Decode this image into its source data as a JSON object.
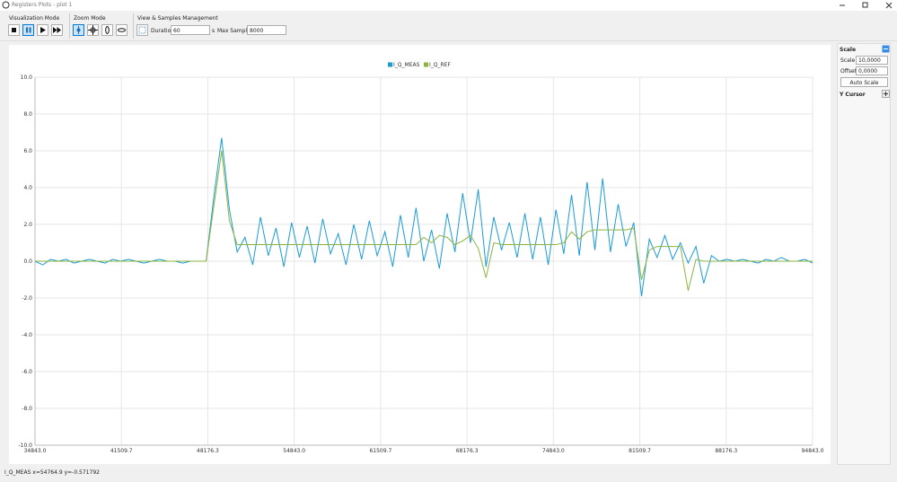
{
  "window": {
    "title": "Registers Plots - plot 1"
  },
  "toolbar": {
    "visualization_mode": "Visualization Mode",
    "zoom_mode": "Zoom Mode",
    "view_samples": "View & Samples Management",
    "duration_label": "Duration",
    "duration_value": "60",
    "duration_unit": "s",
    "max_samples_label": "Max Samples",
    "max_samples_value": "8000"
  },
  "side_panel": {
    "scale_header": "Scale",
    "scale_label": "Scale",
    "scale_value": "10,0000",
    "offset_label": "Offset",
    "offset_value": "0,0000",
    "auto_scale": "Auto Scale",
    "y_cursor": "Y Cursor"
  },
  "status_bar": {
    "text": "I_Q_MEAS x=54764.9 y=-0.571792"
  },
  "chart_data": {
    "type": "line",
    "legend": "top",
    "grid": true,
    "xlim": [
      34843,
      94843
    ],
    "ylim": [
      -10,
      10
    ],
    "xticks": [
      {
        "value": 34843,
        "label": "34843.0"
      },
      41509.7,
      48176.3,
      {
        "value": 54843,
        "label": "54843.0"
      },
      61509.7,
      68176.3,
      {
        "value": 74843,
        "label": "74843.0"
      },
      81509.7,
      88176.3,
      {
        "value": 94843,
        "label": "94843.0"
      }
    ],
    "yticks": [
      {
        "value": -10,
        "label": "-10.0"
      },
      {
        "value": -8,
        "label": "-8.0"
      },
      {
        "value": -6,
        "label": "-6.0"
      },
      {
        "value": -4,
        "label": "-4.0"
      },
      {
        "value": -2,
        "label": "-2.0"
      },
      {
        "value": 0,
        "label": "0.0"
      },
      {
        "value": 2,
        "label": "2.0"
      },
      {
        "value": 4,
        "label": "4.0"
      },
      {
        "value": 6,
        "label": "6.0"
      },
      {
        "value": 8,
        "label": "8.0"
      },
      {
        "value": 10,
        "label": "10.0"
      }
    ],
    "x": [
      34843,
      35443,
      36043,
      36643,
      37243,
      37843,
      38443,
      39043,
      39643,
      40243,
      40843,
      41443,
      42043,
      42643,
      43243,
      43843,
      44443,
      45043,
      45643,
      46243,
      46843,
      47443,
      48043,
      48643,
      49243,
      49843,
      50443,
      51043,
      51643,
      52243,
      52843,
      53443,
      54043,
      54643,
      55243,
      55843,
      56443,
      57043,
      57643,
      58243,
      58843,
      59443,
      60043,
      60643,
      61243,
      61843,
      62443,
      63043,
      63643,
      64243,
      64843,
      65443,
      66043,
      66643,
      67243,
      67843,
      68443,
      69043,
      69643,
      70243,
      70843,
      71443,
      72043,
      72643,
      73243,
      73843,
      74443,
      75043,
      75643,
      76243,
      76843,
      77443,
      78043,
      78643,
      79243,
      79843,
      80443,
      81043,
      81643,
      82243,
      82843,
      83443,
      84043,
      84643,
      85243,
      85843,
      86443,
      87043,
      87643,
      88243,
      88843,
      89443,
      90043,
      90643,
      91243,
      91843,
      92443,
      93043,
      93643,
      94243,
      94843
    ],
    "series": [
      {
        "name": "I_Q_MEAS",
        "color": "#1a9bd7",
        "values": [
          0,
          -0.2,
          0.1,
          0,
          0.1,
          -0.1,
          0,
          0.1,
          0,
          -0.1,
          0.1,
          0,
          0.1,
          0,
          -0.1,
          0,
          0.1,
          0,
          0,
          -0.1,
          0,
          0,
          0,
          3.5,
          6.7,
          2.8,
          0.5,
          1.3,
          -0.2,
          2.4,
          0.3,
          1.8,
          -0.3,
          2.1,
          0.2,
          1.9,
          -0.1,
          2.3,
          0.4,
          1.5,
          -0.2,
          2.0,
          0.1,
          2.2,
          0.3,
          1.6,
          -0.3,
          2.5,
          0.2,
          2.9,
          0,
          1.7,
          -0.4,
          2.6,
          0.5,
          3.7,
          1.0,
          3.9,
          -0.3,
          2.4,
          0.6,
          2.1,
          0.2,
          2.6,
          0.1,
          2.4,
          -0.2,
          2.8,
          0.4,
          3.6,
          0.3,
          4.3,
          0.6,
          4.5,
          0.5,
          3.1,
          0.8,
          2.1,
          -1.9,
          1.2,
          0.2,
          1.4,
          0.1,
          1.0,
          -0.1,
          0.8,
          -1.2,
          0.3,
          0,
          0.1,
          0,
          0.1,
          0,
          -0.1,
          0.1,
          0,
          0.2,
          0,
          0,
          0.1,
          -0.1
        ]
      },
      {
        "name": "I_Q_REF",
        "color": "#8cb43c",
        "values": [
          0,
          0,
          0,
          0,
          0,
          0,
          0,
          0,
          0,
          0,
          0,
          0,
          0,
          0,
          0,
          0,
          0,
          0,
          0,
          0,
          0,
          0,
          0,
          3.0,
          6.0,
          2.2,
          0.9,
          0.9,
          0.9,
          0.9,
          0.9,
          0.9,
          0.9,
          0.9,
          0.9,
          0.9,
          0.9,
          0.9,
          0.9,
          0.9,
          0.9,
          0.9,
          0.9,
          0.9,
          0.9,
          0.9,
          0.9,
          0.9,
          0.9,
          0.9,
          1.3,
          1.0,
          1.4,
          1.3,
          0.9,
          1.1,
          1.4,
          0.7,
          -0.9,
          1.0,
          0.9,
          0.9,
          0.9,
          0.9,
          0.9,
          0.9,
          0.9,
          0.9,
          1.0,
          1.6,
          1.2,
          1.6,
          1.7,
          1.7,
          1.7,
          1.7,
          1.7,
          1.8,
          -1.0,
          0.6,
          0.8,
          0.8,
          0.8,
          0.8,
          -1.6,
          0.1,
          0,
          0,
          0,
          0,
          0,
          0,
          0,
          0,
          0,
          0,
          0,
          0,
          0,
          0,
          0
        ]
      }
    ]
  }
}
